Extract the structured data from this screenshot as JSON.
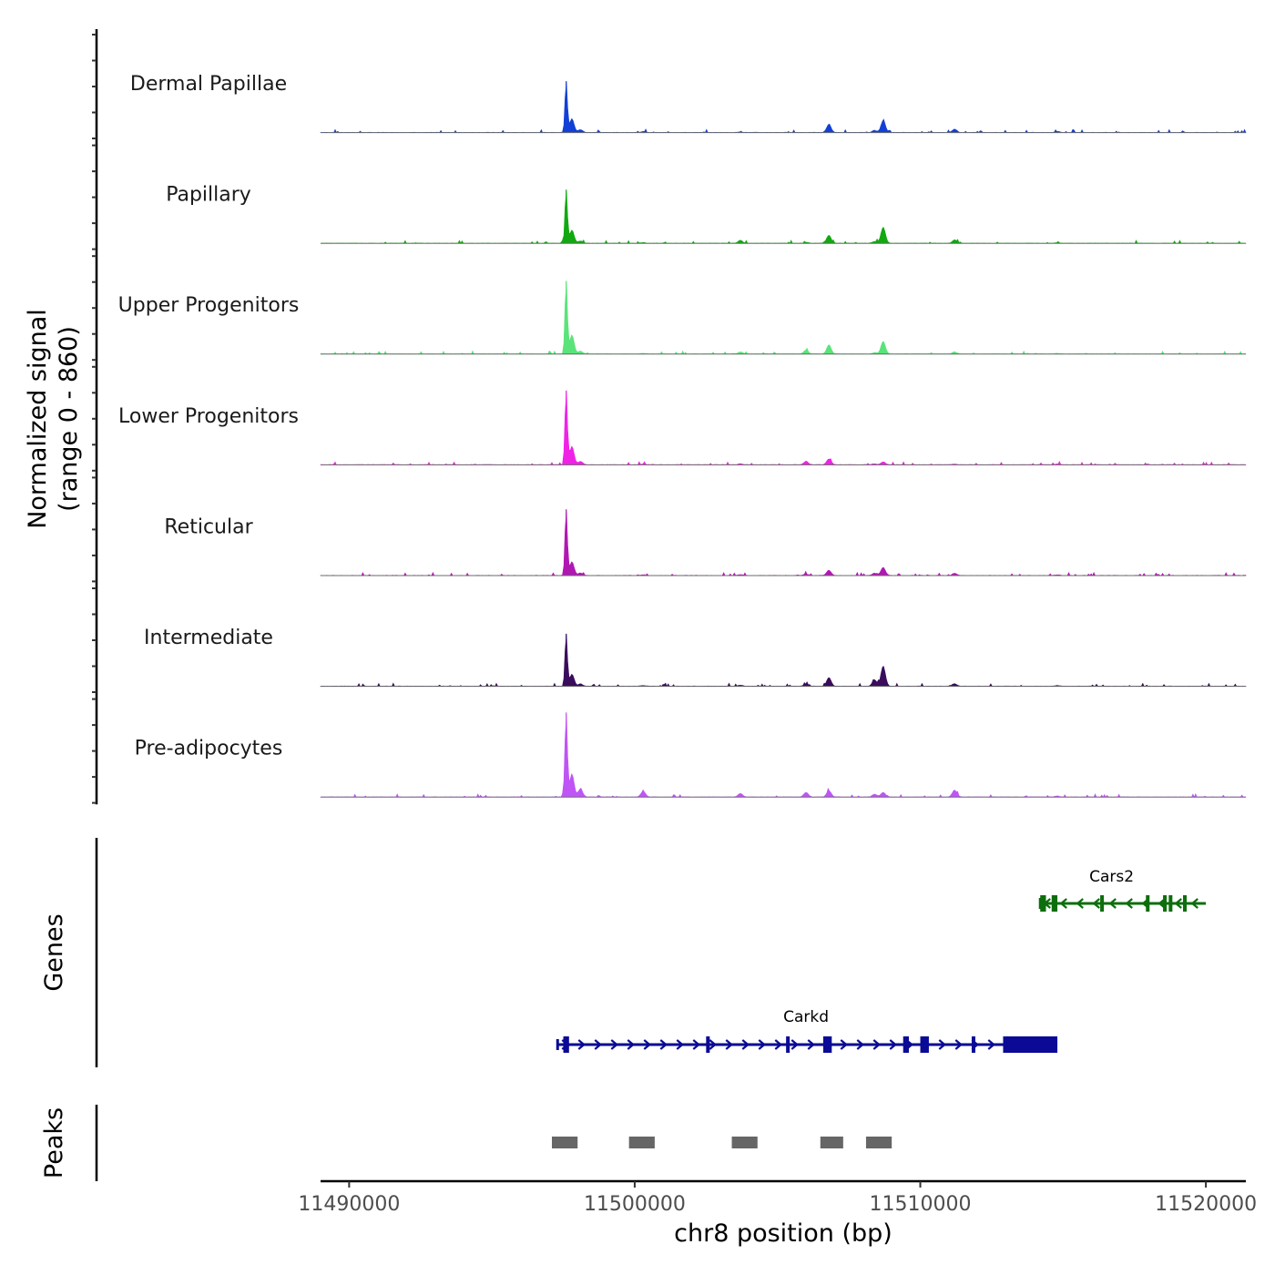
{
  "chart_data": {
    "type": "area",
    "title": "",
    "y_axis_title_line1": "Normalized signal",
    "y_axis_title_line2": "(range 0 - 860)",
    "y_range": [
      0,
      860
    ],
    "xlabel": "chr8 position (bp)",
    "x_range": [
      11489000,
      11521400
    ],
    "x_ticks": [
      11490000,
      11500000,
      11510000,
      11520000
    ],
    "x_tick_labels": [
      "11490000",
      "11500000",
      "11510000",
      "11520000"
    ],
    "baseline_color": "#6b6b6b",
    "peak_positions": [
      11497600,
      11497800,
      11498100,
      11500300,
      11503700,
      11506000,
      11506800,
      11508400,
      11508700,
      11511200,
      11514800
    ],
    "tracks": [
      {
        "name": "Dermal Papillae",
        "color": "#1240d6",
        "values": [
          450,
          120,
          25,
          8,
          5,
          0,
          70,
          18,
          105,
          30,
          10
        ]
      },
      {
        "name": "Papillary",
        "color": "#12a812",
        "values": [
          470,
          115,
          20,
          5,
          25,
          8,
          70,
          15,
          140,
          30,
          6
        ]
      },
      {
        "name": "Upper Progenitors",
        "color": "#5ae37a",
        "values": [
          640,
          165,
          25,
          6,
          18,
          35,
          80,
          12,
          110,
          18,
          6
        ]
      },
      {
        "name": "Lower Progenitors",
        "color": "#f022e6",
        "values": [
          650,
          160,
          30,
          6,
          8,
          30,
          50,
          8,
          25,
          6,
          6
        ]
      },
      {
        "name": "Reticular",
        "color": "#b018b2",
        "values": [
          580,
          120,
          22,
          6,
          8,
          12,
          45,
          20,
          70,
          18,
          6
        ]
      },
      {
        "name": "Intermediate",
        "color": "#3a0c5c",
        "values": [
          460,
          105,
          20,
          5,
          8,
          18,
          75,
          55,
          175,
          22,
          6
        ]
      },
      {
        "name": "Pre-adipocytes",
        "color": "#bf55f5",
        "values": [
          740,
          200,
          70,
          50,
          30,
          40,
          55,
          25,
          40,
          60,
          8
        ]
      }
    ],
    "genes_axis_label": "Genes",
    "genes": [
      {
        "name": "Cars2",
        "strand": "-",
        "color": "#0d6e0d",
        "start": 11514200,
        "end": 11520000,
        "exons": [
          [
            11514200,
            11514400
          ],
          [
            11514600,
            11514800
          ],
          [
            11516300,
            11516400
          ],
          [
            11517900,
            11518000
          ],
          [
            11518500,
            11518600
          ],
          [
            11518700,
            11518800
          ],
          [
            11519200,
            11519300
          ]
        ]
      },
      {
        "name": "Carkd",
        "strand": "+",
        "color": "#0a0a96",
        "start": 11497300,
        "end": 11514800,
        "exons": [
          [
            11497500,
            11497700
          ],
          [
            11502500,
            11502600
          ],
          [
            11505300,
            11505400
          ],
          [
            11506600,
            11506900
          ],
          [
            11509400,
            11509600
          ],
          [
            11510000,
            11510300
          ],
          [
            11511800,
            11511900
          ],
          [
            11512900,
            11514800
          ]
        ]
      }
    ],
    "peaks_axis_label": "Peaks",
    "peaks_color": "#666666",
    "peaks": [
      [
        11497100,
        11498000
      ],
      [
        11499800,
        11500700
      ],
      [
        11503400,
        11504300
      ],
      [
        11506500,
        11507300
      ],
      [
        11508100,
        11509000
      ]
    ]
  }
}
